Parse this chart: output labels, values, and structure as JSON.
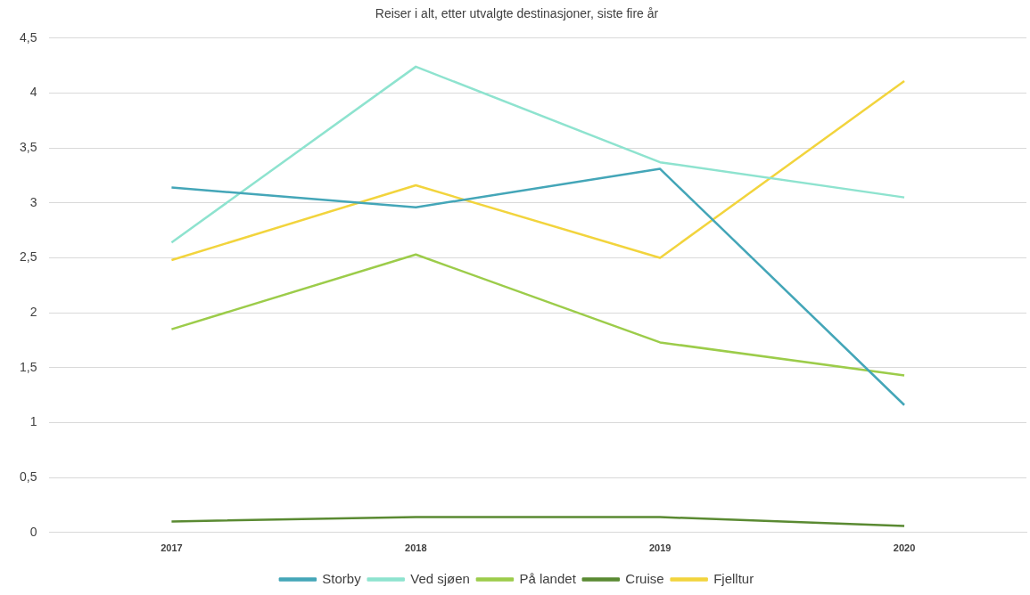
{
  "chart_data": {
    "type": "line",
    "title": "Reiser i alt, etter utvalgte destinasjoner, siste fire år",
    "categories": [
      "2017",
      "2018",
      "2019",
      "2020"
    ],
    "series": [
      {
        "name": "Storby",
        "color": "#44a6b8",
        "values": [
          3.14,
          2.96,
          3.31,
          1.16
        ]
      },
      {
        "name": "Ved sjøen",
        "color": "#8ee3cf",
        "values": [
          2.64,
          4.24,
          3.37,
          3.05
        ]
      },
      {
        "name": "På landet",
        "color": "#9ccc4a",
        "values": [
          1.85,
          2.53,
          1.73,
          1.43
        ]
      },
      {
        "name": "Cruise",
        "color": "#5a8a32",
        "values": [
          0.1,
          0.14,
          0.14,
          0.06
        ]
      },
      {
        "name": "Fjelltur",
        "color": "#f2d43d",
        "values": [
          2.48,
          3.16,
          2.5,
          4.11
        ]
      }
    ],
    "ylim": [
      0,
      4.5
    ],
    "yticks": [
      0,
      {
        "value": 0.5,
        "label": "0,5"
      },
      1,
      {
        "value": 1.5,
        "label": "1,5"
      },
      2,
      {
        "value": 2.5,
        "label": "2,5"
      },
      3,
      {
        "value": 3.5,
        "label": "3,5"
      },
      4,
      {
        "value": 4.5,
        "label": "4,5"
      }
    ],
    "grid": "y",
    "legend": "bottom",
    "marker": "none",
    "line_style": "solid"
  }
}
